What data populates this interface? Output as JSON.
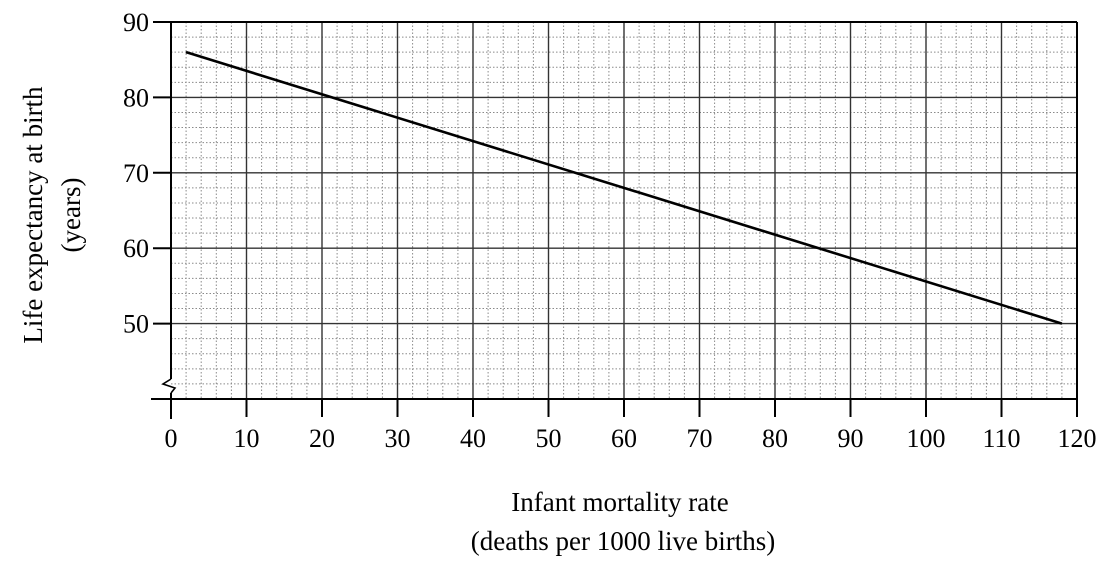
{
  "chart_data": {
    "type": "line",
    "title": "",
    "xlabel_lines": [
      "Infant mortality rate",
      "(deaths per 1000 live births)"
    ],
    "ylabel_lines": [
      "Life expectancy at birth",
      "(years)"
    ],
    "xlim": [
      0,
      120
    ],
    "ylim": [
      40,
      90
    ],
    "y_axis_break": true,
    "grid": true,
    "x_ticks": [
      "0",
      "10",
      "20",
      "30",
      "40",
      "50",
      "60",
      "70",
      "80",
      "90",
      "100",
      "110",
      "120"
    ],
    "y_ticks": [
      "50",
      "60",
      "70",
      "80",
      "90"
    ],
    "series": [
      {
        "x": [
          2,
          118
        ],
        "y": [
          86,
          50
        ],
        "color": "#000000"
      }
    ]
  }
}
